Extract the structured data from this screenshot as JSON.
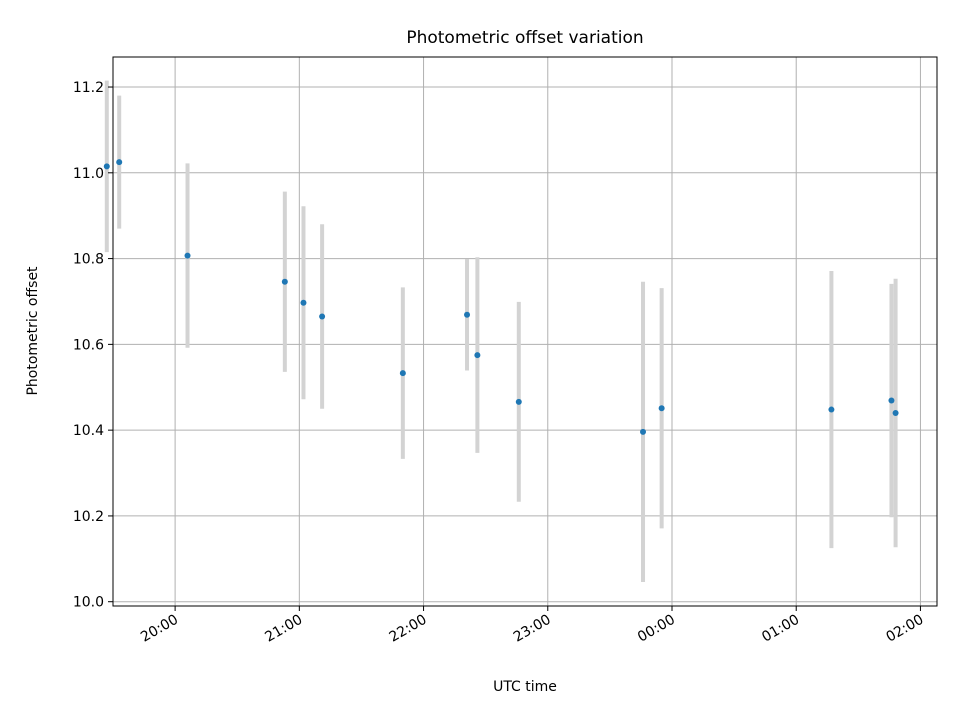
{
  "chart_data": {
    "type": "scatter",
    "title": "Photometric offset variation",
    "xlabel": "UTC time",
    "ylabel": "Photometric offset",
    "xlim": [
      "19:30",
      "02:08"
    ],
    "ylim": [
      9.99,
      11.27
    ],
    "x_ticks": [
      "20:00",
      "21:00",
      "22:00",
      "23:00",
      "00:00",
      "01:00",
      "02:00"
    ],
    "y_ticks": [
      10.0,
      10.2,
      10.4,
      10.6,
      10.8,
      11.0,
      11.2
    ],
    "grid": true,
    "marker_color": "#1f77b4",
    "errorbar_color": "#d3d3d3",
    "points": [
      {
        "time": "19:27",
        "value": 11.015,
        "err": 0.2
      },
      {
        "time": "19:33",
        "value": 11.025,
        "err": 0.155
      },
      {
        "time": "20:06",
        "value": 10.807,
        "err": 0.215
      },
      {
        "time": "20:53",
        "value": 10.746,
        "err": 0.21
      },
      {
        "time": "21:02",
        "value": 10.697,
        "err": 0.225
      },
      {
        "time": "21:11",
        "value": 10.665,
        "err": 0.215
      },
      {
        "time": "21:50",
        "value": 10.533,
        "err": 0.2
      },
      {
        "time": "22:21",
        "value": 10.669,
        "err": 0.13
      },
      {
        "time": "22:26",
        "value": 10.575,
        "err": 0.228
      },
      {
        "time": "22:46",
        "value": 10.466,
        "err": 0.233
      },
      {
        "time": "23:46",
        "value": 10.396,
        "err": 0.35
      },
      {
        "time": "23:55",
        "value": 10.451,
        "err": 0.28
      },
      {
        "time": "01:17",
        "value": 10.448,
        "err": 0.323
      },
      {
        "time": "01:46",
        "value": 10.469,
        "err": 0.272
      },
      {
        "time": "01:48",
        "value": 10.44,
        "err": 0.313
      }
    ]
  }
}
